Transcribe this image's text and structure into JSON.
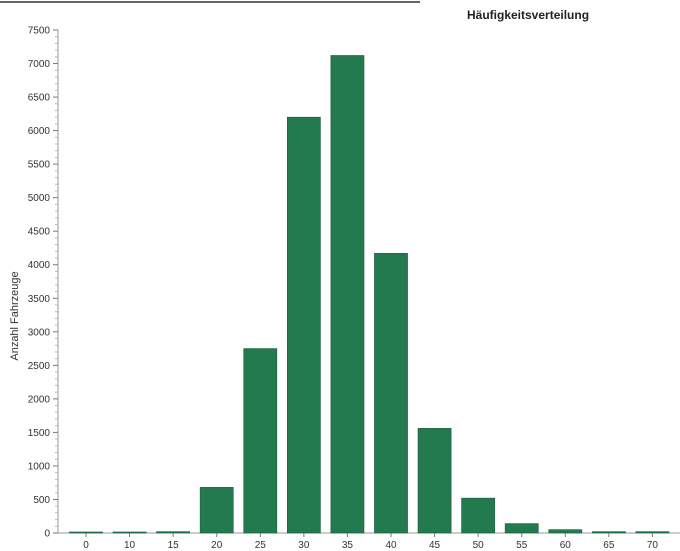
{
  "chart_data": {
    "type": "bar",
    "title": "Häufigkeitsverteilung",
    "xlabel": "",
    "ylabel": "Anzahl Fahrzeuge",
    "categories": [
      "0",
      "10",
      "15",
      "20",
      "25",
      "30",
      "35",
      "40",
      "45",
      "50",
      "55",
      "60",
      "65",
      "70"
    ],
    "values": [
      15,
      15,
      20,
      680,
      2750,
      6200,
      7120,
      4170,
      1560,
      520,
      140,
      50,
      20,
      20
    ],
    "y_ticks": [
      0,
      500,
      1000,
      1500,
      2000,
      2500,
      3000,
      3500,
      4000,
      4500,
      5000,
      5500,
      6000,
      6500,
      7000,
      7500
    ],
    "ylim": [
      0,
      7500
    ],
    "grid": false,
    "legend": "none",
    "bar_color": "#237a4e"
  }
}
